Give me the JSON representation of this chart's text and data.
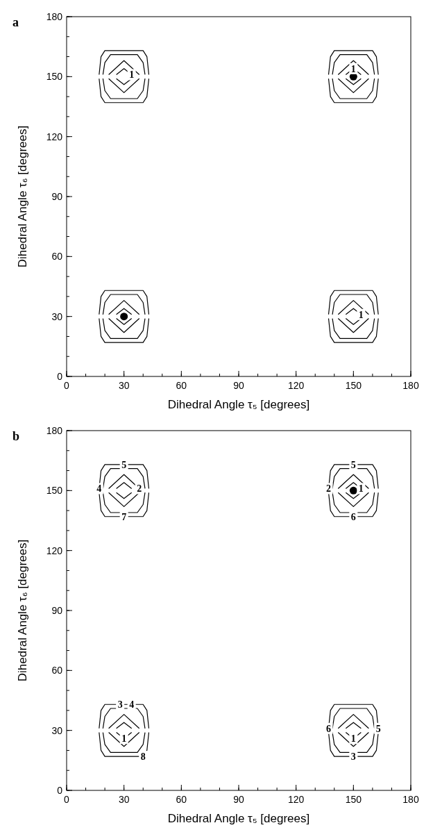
{
  "chart_data": [
    {
      "type": "line",
      "title": "a",
      "xlabel": "Dihedral Angle τ₅  [degrees]",
      "ylabel": "Dihedral Angle τ₆  [degrees]",
      "xlim": [
        0,
        180
      ],
      "ylim": [
        0,
        180
      ],
      "xticks": [
        0,
        30,
        60,
        90,
        120,
        150,
        180
      ],
      "yticks": [
        0,
        30,
        60,
        90,
        120,
        150,
        180
      ],
      "marker": "none",
      "line_style": "solid",
      "series": [
        {
          "color": "#000000",
          "x": [
            26,
            30,
            34
          ],
          "values": [
            31,
            34,
            31
          ]
        },
        {
          "color": "#000000",
          "x": [
            26,
            30,
            34
          ],
          "values": [
            29,
            26,
            29
          ]
        },
        {
          "color": "#000000",
          "x": [
            22,
            30,
            38
          ],
          "values": [
            31,
            38,
            31
          ]
        },
        {
          "color": "#000000",
          "x": [
            22,
            30,
            38
          ],
          "values": [
            29,
            22,
            29
          ]
        },
        {
          "color": "#000000",
          "x": [
            19,
            20,
            23,
            37,
            40,
            41
          ],
          "values": [
            31,
            37,
            41,
            41,
            37,
            31
          ]
        },
        {
          "color": "#000000",
          "x": [
            19,
            20,
            23,
            37,
            40,
            41
          ],
          "values": [
            29,
            23,
            19,
            19,
            23,
            29
          ]
        },
        {
          "color": "#000000",
          "x": [
            17,
            18,
            20,
            40,
            42,
            43
          ],
          "values": [
            31,
            40,
            43,
            43,
            40,
            31
          ]
        },
        {
          "color": "#000000",
          "x": [
            17,
            18,
            20,
            40,
            42,
            43
          ],
          "values": [
            29,
            20,
            17,
            17,
            20,
            29
          ]
        },
        {
          "color": "#000000",
          "x": [
            146,
            150,
            154
          ],
          "values": [
            31,
            34,
            31
          ]
        },
        {
          "color": "#000000",
          "x": [
            146,
            150,
            154
          ],
          "values": [
            29,
            26,
            29
          ]
        },
        {
          "color": "#000000",
          "x": [
            142,
            150,
            158
          ],
          "values": [
            31,
            38,
            31
          ]
        },
        {
          "color": "#000000",
          "x": [
            142,
            150,
            158
          ],
          "values": [
            29,
            22,
            29
          ]
        },
        {
          "color": "#000000",
          "x": [
            139,
            140,
            143,
            157,
            160,
            161
          ],
          "values": [
            31,
            37,
            41,
            41,
            37,
            31
          ]
        },
        {
          "color": "#000000",
          "x": [
            139,
            140,
            143,
            157,
            160,
            161
          ],
          "values": [
            29,
            23,
            19,
            19,
            23,
            29
          ]
        },
        {
          "color": "#000000",
          "x": [
            137,
            138,
            140,
            160,
            162,
            163
          ],
          "values": [
            31,
            40,
            43,
            43,
            40,
            31
          ]
        },
        {
          "color": "#000000",
          "x": [
            137,
            138,
            140,
            160,
            162,
            163
          ],
          "values": [
            29,
            20,
            17,
            17,
            20,
            29
          ]
        },
        {
          "color": "#000000",
          "x": [
            26,
            30,
            34
          ],
          "values": [
            151,
            154,
            151
          ]
        },
        {
          "color": "#000000",
          "x": [
            26,
            30,
            34
          ],
          "values": [
            149,
            146,
            149
          ]
        },
        {
          "color": "#000000",
          "x": [
            22,
            30,
            38
          ],
          "values": [
            151,
            158,
            151
          ]
        },
        {
          "color": "#000000",
          "x": [
            22,
            30,
            38
          ],
          "values": [
            149,
            142,
            149
          ]
        },
        {
          "color": "#000000",
          "x": [
            19,
            20,
            23,
            37,
            40,
            41
          ],
          "values": [
            151,
            157,
            161,
            161,
            157,
            151
          ]
        },
        {
          "color": "#000000",
          "x": [
            19,
            20,
            23,
            37,
            40,
            41
          ],
          "values": [
            149,
            143,
            139,
            139,
            143,
            149
          ]
        },
        {
          "color": "#000000",
          "x": [
            17,
            18,
            20,
            40,
            42,
            43
          ],
          "values": [
            151,
            160,
            163,
            163,
            160,
            151
          ]
        },
        {
          "color": "#000000",
          "x": [
            17,
            18,
            20,
            40,
            42,
            43
          ],
          "values": [
            149,
            140,
            137,
            137,
            140,
            149
          ]
        },
        {
          "color": "#000000",
          "x": [
            146,
            150,
            154
          ],
          "values": [
            151,
            154,
            151
          ]
        },
        {
          "color": "#000000",
          "x": [
            146,
            150,
            154
          ],
          "values": [
            149,
            146,
            149
          ]
        },
        {
          "color": "#000000",
          "x": [
            142,
            150,
            158
          ],
          "values": [
            151,
            158,
            151
          ]
        },
        {
          "color": "#000000",
          "x": [
            142,
            150,
            158
          ],
          "values": [
            149,
            142,
            149
          ]
        },
        {
          "color": "#000000",
          "x": [
            139,
            140,
            143,
            157,
            160,
            161
          ],
          "values": [
            151,
            157,
            161,
            161,
            157,
            151
          ]
        },
        {
          "color": "#000000",
          "x": [
            139,
            140,
            143,
            157,
            160,
            161
          ],
          "values": [
            149,
            143,
            139,
            139,
            143,
            149
          ]
        },
        {
          "color": "#000000",
          "x": [
            137,
            138,
            140,
            160,
            162,
            163
          ],
          "values": [
            151,
            160,
            163,
            163,
            160,
            151
          ]
        },
        {
          "color": "#000000",
          "x": [
            137,
            138,
            140,
            160,
            162,
            163
          ],
          "values": [
            149,
            140,
            137,
            137,
            140,
            149
          ]
        },
        {
          "type": "scatter",
          "marker": "circle",
          "color": "#000000",
          "x": [
            30,
            150
          ],
          "values": [
            30,
            150
          ]
        }
      ],
      "annotations": [
        {
          "text": "1",
          "x": 34,
          "y": 151
        },
        {
          "text": "1",
          "x": 150,
          "y": 154
        },
        {
          "text": "1",
          "x": 154,
          "y": 31
        }
      ]
    },
    {
      "type": "line",
      "title": "b",
      "xlabel": "Dihedral Angle τ₅  [degrees]",
      "ylabel": "Dihedral Angle τ₆  [degrees]",
      "xlim": [
        0,
        180
      ],
      "ylim": [
        0,
        180
      ],
      "xticks": [
        0,
        30,
        60,
        90,
        120,
        150,
        180
      ],
      "yticks": [
        0,
        30,
        60,
        90,
        120,
        150,
        180
      ],
      "marker": "none",
      "line_style": "solid",
      "series": [
        {
          "color": "#000000",
          "x": [
            26,
            30,
            34
          ],
          "values": [
            31,
            34,
            31
          ]
        },
        {
          "color": "#000000",
          "x": [
            26,
            30,
            34
          ],
          "values": [
            29,
            26,
            29
          ]
        },
        {
          "color": "#000000",
          "x": [
            22,
            30,
            38
          ],
          "values": [
            31,
            38,
            31
          ]
        },
        {
          "color": "#000000",
          "x": [
            22,
            30,
            38
          ],
          "values": [
            29,
            22,
            29
          ]
        },
        {
          "color": "#000000",
          "x": [
            19,
            20,
            23,
            37,
            40,
            41
          ],
          "values": [
            31,
            37,
            41,
            41,
            37,
            31
          ]
        },
        {
          "color": "#000000",
          "x": [
            19,
            20,
            23,
            37,
            40,
            41
          ],
          "values": [
            29,
            23,
            19,
            19,
            23,
            29
          ]
        },
        {
          "color": "#000000",
          "x": [
            17,
            18,
            20,
            40,
            42,
            43
          ],
          "values": [
            31,
            40,
            43,
            43,
            40,
            31
          ]
        },
        {
          "color": "#000000",
          "x": [
            17,
            18,
            20,
            40,
            42,
            43
          ],
          "values": [
            29,
            20,
            17,
            17,
            20,
            29
          ]
        },
        {
          "color": "#000000",
          "x": [
            146,
            150,
            154
          ],
          "values": [
            31,
            34,
            31
          ]
        },
        {
          "color": "#000000",
          "x": [
            146,
            150,
            154
          ],
          "values": [
            29,
            26,
            29
          ]
        },
        {
          "color": "#000000",
          "x": [
            142,
            150,
            158
          ],
          "values": [
            31,
            38,
            31
          ]
        },
        {
          "color": "#000000",
          "x": [
            142,
            150,
            158
          ],
          "values": [
            29,
            22,
            29
          ]
        },
        {
          "color": "#000000",
          "x": [
            139,
            140,
            143,
            157,
            160,
            161
          ],
          "values": [
            31,
            37,
            41,
            41,
            37,
            31
          ]
        },
        {
          "color": "#000000",
          "x": [
            139,
            140,
            143,
            157,
            160,
            161
          ],
          "values": [
            29,
            23,
            19,
            19,
            23,
            29
          ]
        },
        {
          "color": "#000000",
          "x": [
            137,
            138,
            140,
            160,
            162,
            163
          ],
          "values": [
            31,
            40,
            43,
            43,
            40,
            31
          ]
        },
        {
          "color": "#000000",
          "x": [
            137,
            138,
            140,
            160,
            162,
            163
          ],
          "values": [
            29,
            20,
            17,
            17,
            20,
            29
          ]
        },
        {
          "color": "#000000",
          "x": [
            26,
            30,
            34
          ],
          "values": [
            151,
            154,
            151
          ]
        },
        {
          "color": "#000000",
          "x": [
            26,
            30,
            34
          ],
          "values": [
            149,
            146,
            149
          ]
        },
        {
          "color": "#000000",
          "x": [
            22,
            30,
            38
          ],
          "values": [
            151,
            158,
            151
          ]
        },
        {
          "color": "#000000",
          "x": [
            22,
            30,
            38
          ],
          "values": [
            149,
            142,
            149
          ]
        },
        {
          "color": "#000000",
          "x": [
            19,
            20,
            23,
            37,
            40,
            41
          ],
          "values": [
            151,
            157,
            161,
            161,
            157,
            151
          ]
        },
        {
          "color": "#000000",
          "x": [
            19,
            20,
            23,
            37,
            40,
            41
          ],
          "values": [
            149,
            143,
            139,
            139,
            143,
            149
          ]
        },
        {
          "color": "#000000",
          "x": [
            17,
            18,
            20,
            40,
            42,
            43
          ],
          "values": [
            151,
            160,
            163,
            163,
            160,
            151
          ]
        },
        {
          "color": "#000000",
          "x": [
            17,
            18,
            20,
            40,
            42,
            43
          ],
          "values": [
            149,
            140,
            137,
            137,
            140,
            149
          ]
        },
        {
          "color": "#000000",
          "x": [
            146,
            150,
            154
          ],
          "values": [
            151,
            154,
            151
          ]
        },
        {
          "color": "#000000",
          "x": [
            146,
            150,
            154
          ],
          "values": [
            149,
            146,
            149
          ]
        },
        {
          "color": "#000000",
          "x": [
            142,
            150,
            158
          ],
          "values": [
            151,
            158,
            151
          ]
        },
        {
          "color": "#000000",
          "x": [
            142,
            150,
            158
          ],
          "values": [
            149,
            142,
            149
          ]
        },
        {
          "color": "#000000",
          "x": [
            139,
            140,
            143,
            157,
            160,
            161
          ],
          "values": [
            151,
            157,
            161,
            161,
            157,
            151
          ]
        },
        {
          "color": "#000000",
          "x": [
            139,
            140,
            143,
            157,
            160,
            161
          ],
          "values": [
            149,
            143,
            139,
            139,
            143,
            149
          ]
        },
        {
          "color": "#000000",
          "x": [
            137,
            138,
            140,
            160,
            162,
            163
          ],
          "values": [
            151,
            160,
            163,
            163,
            160,
            151
          ]
        },
        {
          "color": "#000000",
          "x": [
            137,
            138,
            140,
            160,
            162,
            163
          ],
          "values": [
            149,
            140,
            137,
            137,
            140,
            149
          ]
        },
        {
          "type": "scatter",
          "marker": "circle",
          "color": "#000000",
          "x": [
            150
          ],
          "values": [
            150
          ]
        }
      ],
      "annotations": [
        {
          "text": "5",
          "x": 30,
          "y": 163
        },
        {
          "text": "4",
          "x": 17,
          "y": 151
        },
        {
          "text": "2",
          "x": 38,
          "y": 151
        },
        {
          "text": "7",
          "x": 30,
          "y": 137
        },
        {
          "text": "5",
          "x": 150,
          "y": 163
        },
        {
          "text": "2",
          "x": 137,
          "y": 151
        },
        {
          "text": "1",
          "x": 154,
          "y": 151
        },
        {
          "text": "6",
          "x": 150,
          "y": 137
        },
        {
          "text": "3",
          "x": 28,
          "y": 43
        },
        {
          "text": "4",
          "x": 34,
          "y": 43
        },
        {
          "text": "1",
          "x": 30,
          "y": 26
        },
        {
          "text": "8",
          "x": 40,
          "y": 17
        },
        {
          "text": "6",
          "x": 137,
          "y": 31
        },
        {
          "text": "1",
          "x": 150,
          "y": 26
        },
        {
          "text": "5",
          "x": 163,
          "y": 31
        },
        {
          "text": "3",
          "x": 150,
          "y": 17
        }
      ]
    }
  ]
}
